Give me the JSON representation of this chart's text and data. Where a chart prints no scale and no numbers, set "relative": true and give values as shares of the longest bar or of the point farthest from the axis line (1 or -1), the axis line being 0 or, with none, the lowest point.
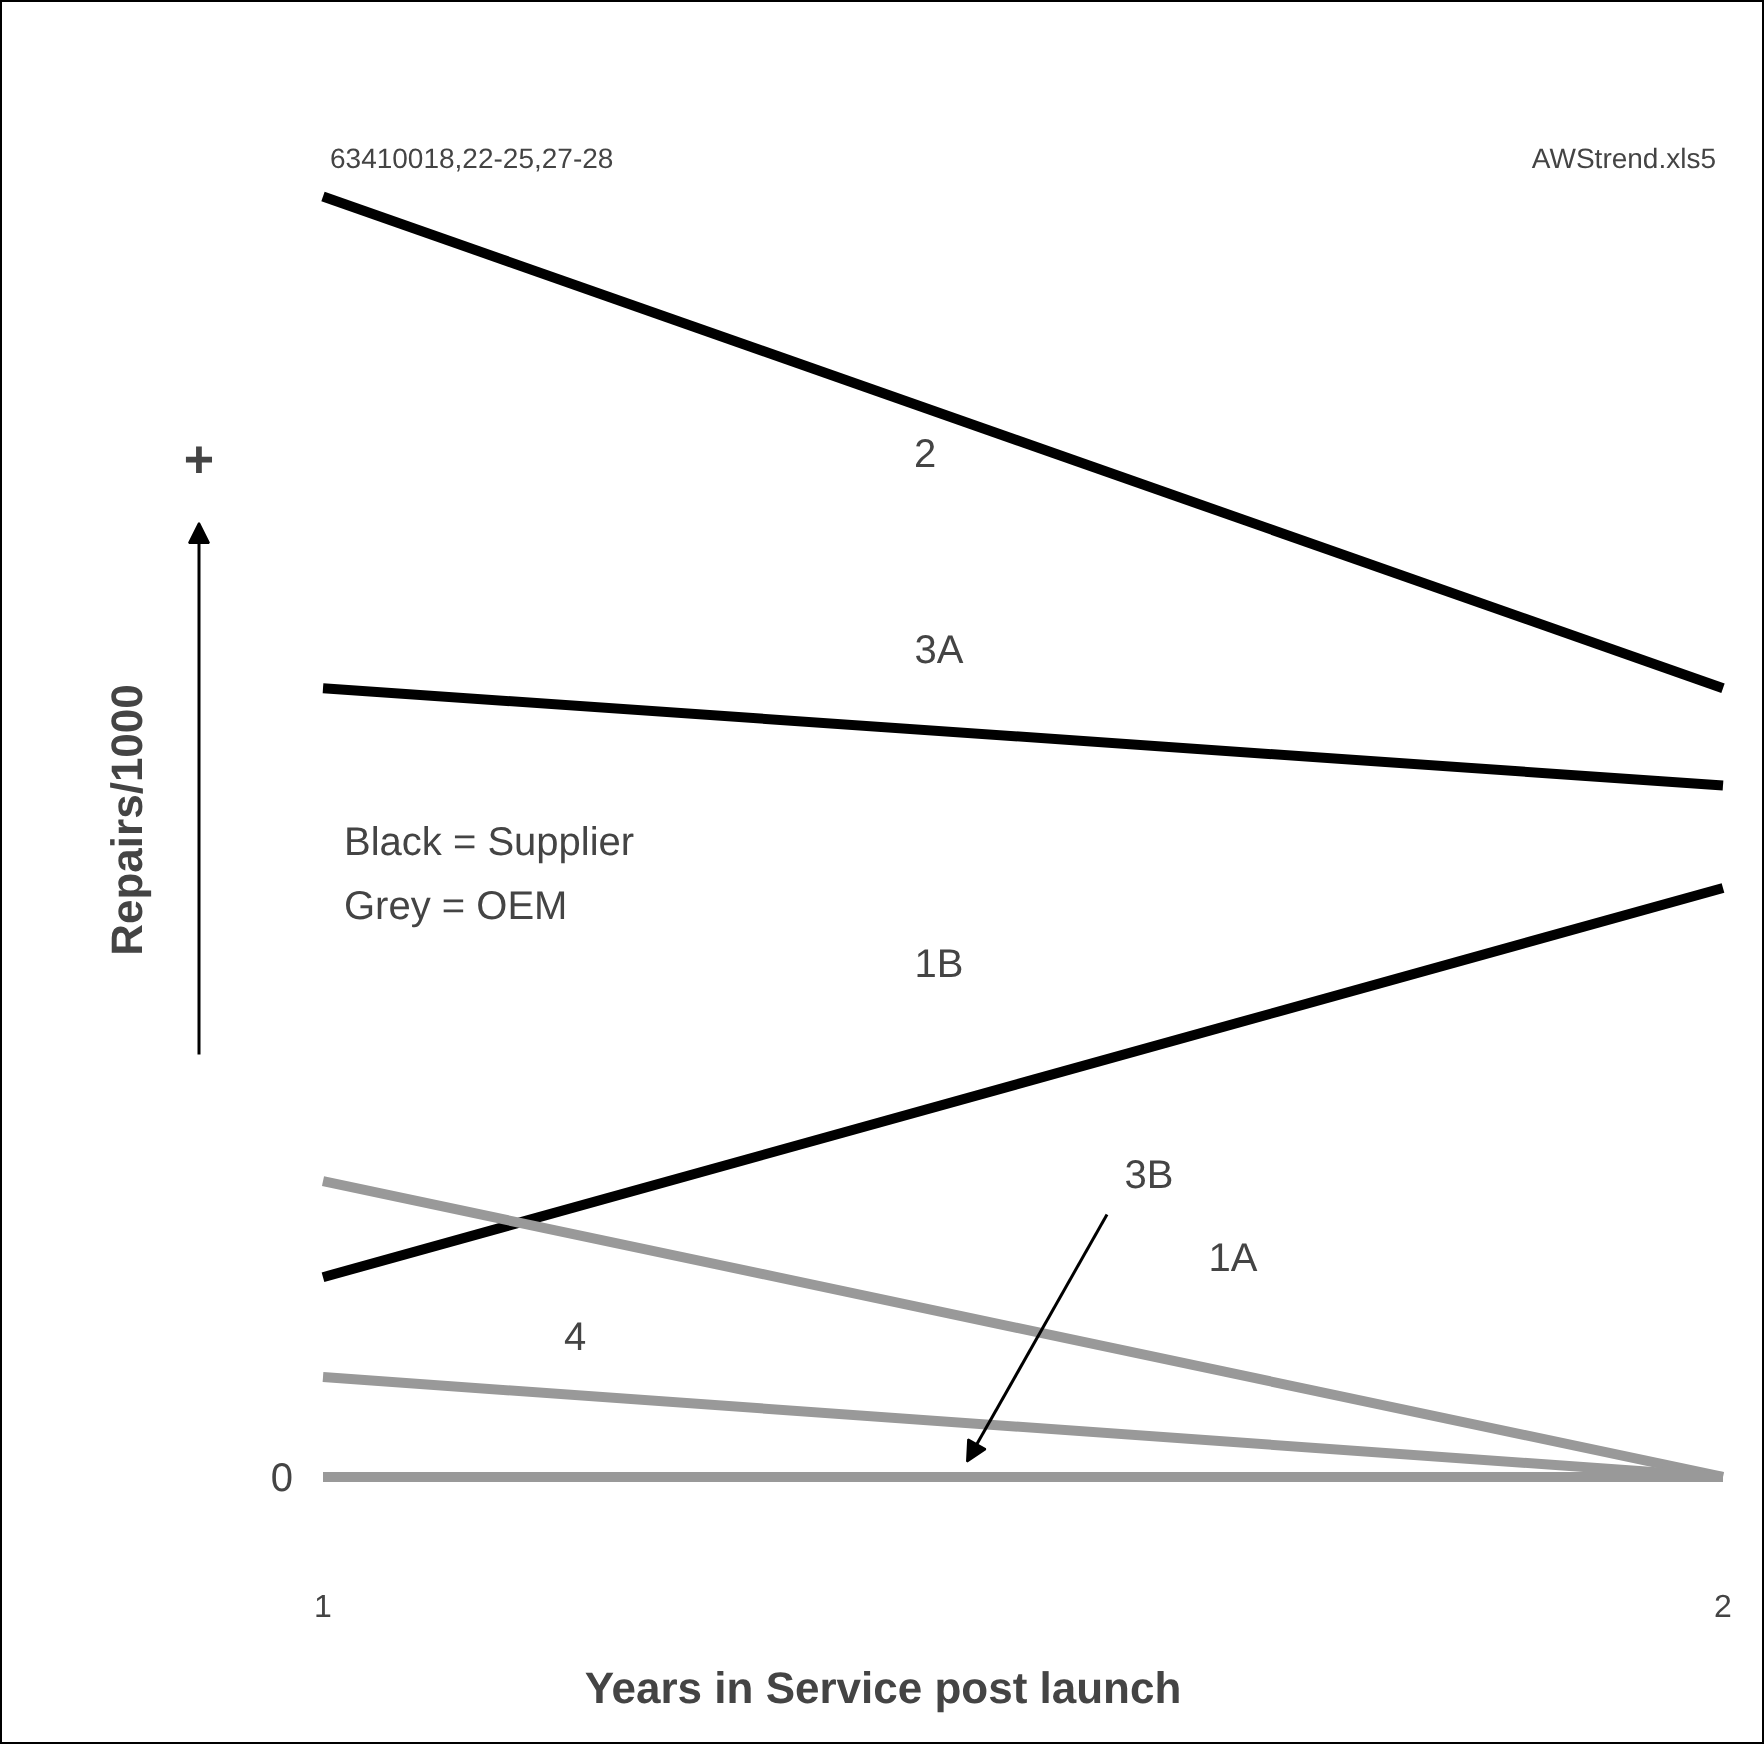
{
  "chart_data": {
    "type": "line",
    "relative": true,
    "xlabel": "Years in Service post launch",
    "ylabel": "Repairs/1000",
    "x": [
      1,
      2
    ],
    "xlim": [
      1,
      2
    ],
    "xticks": [
      1,
      2
    ],
    "marker": "none",
    "line_style": "solid",
    "series": [
      {
        "name": "2",
        "color": "#000000",
        "values": [
          1.0,
          0.616
        ]
      },
      {
        "name": "3A",
        "color": "#000000",
        "values": [
          0.616,
          0.54
        ]
      },
      {
        "name": "1B",
        "color": "#000000",
        "values": [
          0.156,
          0.46
        ]
      },
      {
        "name": "1A",
        "color": "#999999",
        "values": [
          0.231,
          0
        ]
      },
      {
        "name": "4",
        "color": "#999999",
        "values": [
          0.078,
          0
        ]
      },
      {
        "name": "3B",
        "color": "#999999",
        "values": [
          0,
          0
        ]
      }
    ],
    "annotations": [
      "63410018,22-25,27-28",
      "AWStrend.xls5",
      "Black = Supplier",
      "Grey = OEM",
      "+",
      "0"
    ]
  }
}
